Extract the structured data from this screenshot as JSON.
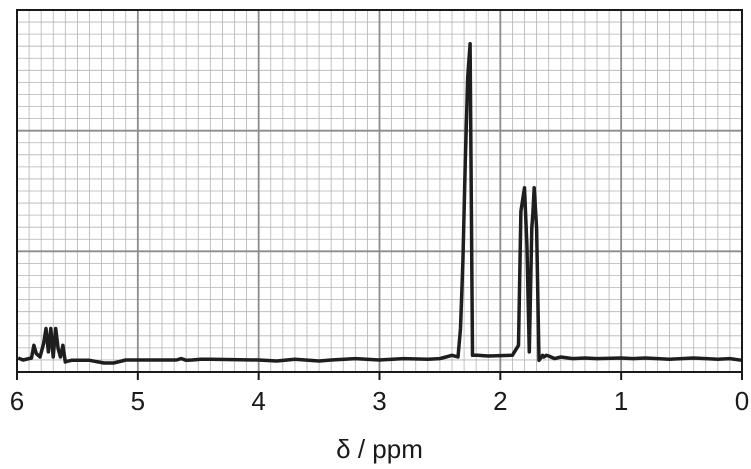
{
  "chart_data": {
    "type": "line",
    "title": "",
    "xlabel": "δ / ppm",
    "ylabel": "",
    "xlim": [
      6,
      0
    ],
    "x_reversed": true,
    "ylim": [
      0,
      100
    ],
    "grid": true,
    "minor_grid": true,
    "tick_labels": [
      "6",
      "5",
      "4",
      "3",
      "2",
      "1",
      "0"
    ],
    "colors": {
      "line": "#1e1e1e",
      "major_grid": "#8c8c8c",
      "minor_grid": "#b4b4b4",
      "frame": "#1a1a1a"
    },
    "series": [
      {
        "x": [
          5.99,
          5.95,
          5.88,
          5.86,
          5.84,
          5.81,
          5.78,
          5.76,
          5.74,
          5.72,
          5.7,
          5.68,
          5.66,
          5.64,
          5.62,
          5.6,
          5.58,
          5.57,
          5.55,
          5.4,
          5.28,
          5.2,
          5.1,
          5.03,
          4.95,
          4.85,
          4.68,
          4.64,
          4.6,
          4.55,
          4.48,
          4.4,
          4.0,
          3.85,
          3.7,
          3.5,
          3.4,
          3.2,
          3.0,
          2.8,
          2.6,
          2.5,
          2.45,
          2.4,
          2.35,
          2.33,
          2.31,
          2.29,
          2.27,
          2.25,
          2.23,
          2.215,
          2.2,
          2.19,
          2.1,
          1.9,
          1.85,
          1.83,
          1.8,
          1.78,
          1.76,
          1.74,
          1.73,
          1.72,
          1.7,
          1.68,
          1.66,
          1.65,
          1.64,
          1.62,
          1.6,
          1.55,
          1.5,
          1.4,
          1.3,
          1.2,
          1.0,
          0.9,
          0.8,
          0.7,
          0.6,
          0.5,
          0.4,
          0.3,
          0.2,
          0.1,
          0.0
        ],
        "y": [
          1.2,
          0.6,
          1.2,
          5.0,
          2.5,
          1.5,
          5.5,
          10.0,
          3.0,
          10.0,
          1.5,
          10.0,
          4.0,
          1.5,
          5.0,
          0.0,
          0.3,
          0.3,
          0.5,
          0.5,
          -0.3,
          -0.3,
          0.6,
          0.6,
          0.6,
          0.6,
          0.6,
          1.0,
          0.5,
          0.6,
          0.8,
          0.8,
          0.6,
          0.3,
          0.8,
          0.3,
          0.6,
          1.0,
          0.6,
          1.0,
          0.8,
          1.0,
          1.5,
          2.0,
          1.5,
          10.0,
          30.0,
          60.0,
          85.0,
          95.0,
          2.0,
          2.0,
          2.0,
          2.0,
          1.8,
          2.0,
          5.0,
          45.0,
          52.0,
          35.0,
          3.0,
          40.0,
          45.0,
          52.0,
          40.0,
          0.5,
          1.5,
          2.0,
          1.5,
          2.0,
          1.8,
          1.0,
          1.5,
          1.0,
          1.2,
          1.0,
          1.2,
          1.0,
          1.2,
          1.0,
          0.8,
          1.0,
          1.2,
          1.0,
          0.8,
          1.0,
          0.5
        ]
      }
    ]
  }
}
